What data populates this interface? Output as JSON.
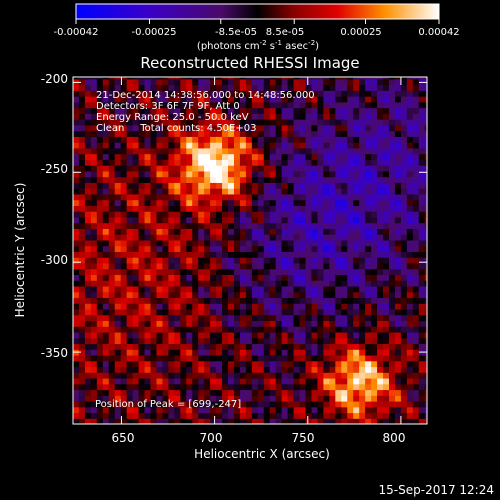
{
  "chart_data": {
    "type": "heatmap",
    "title": "Reconstructed RHESSI Image",
    "xlabel": "Heliocentric X (arcsec)",
    "ylabel": "Heliocentric Y (arcsec)",
    "xlim": [
      624,
      814
    ],
    "ylim": [
      -390,
      -197
    ],
    "x_ticks": [
      650,
      700,
      750,
      800
    ],
    "y_ticks": [
      -200,
      -250,
      -300,
      -350
    ],
    "colorbar": {
      "range": [
        -0.00042,
        0.00042
      ],
      "tick_labels": [
        "-0.00042",
        "-0.00025",
        "-8.5e-05",
        "8.5e-05",
        "0.00025",
        "0.00042"
      ],
      "tick_values": [
        -0.00042,
        -0.00025,
        -8.5e-05,
        8.5e-05,
        0.00025,
        0.00042
      ],
      "unit_prefix": "(photons cm",
      "unit_exp1": "-2",
      "unit_mid": " s",
      "unit_exp2": "-1",
      "unit_mid2": " asec",
      "unit_exp3": "-2",
      "unit_suffix": ")"
    },
    "annotations": {
      "time_range": "21-Dec-2014 14:38:56.000 to 14:48:56.000",
      "detectors": "Detectors: 3F 6F 7F 9F, Att 0",
      "energy": "Energy Range: 25.0 - 50.0 keV",
      "clean": "Clean     Total counts: 4.50E+03",
      "peak": "Position of Peak = [699,-247]"
    },
    "sources": [
      {
        "x": 699,
        "y": -247,
        "value": 0.00042
      },
      {
        "x": 776,
        "y": -368,
        "value": 0.00036
      }
    ],
    "negative_region": {
      "center_x": 765,
      "center_y": -270,
      "value": -0.0002
    }
  },
  "footer": {
    "timestamp": "15-Sep-2017 12:24"
  }
}
